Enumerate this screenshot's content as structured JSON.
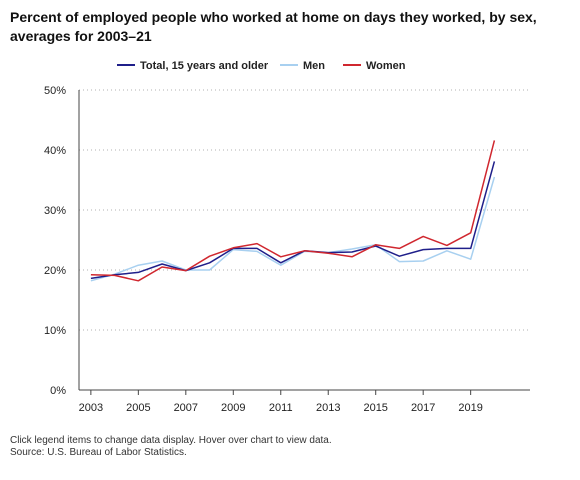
{
  "title": "Percent of employed people who worked at home on days they worked, by sex, averages for 2003–21",
  "footnote": {
    "line1": "Click legend items to change data display. Hover over chart to view data.",
    "line2": "Source: U.S. Bureau of Labor Statistics."
  },
  "colors": {
    "total": "#1f1f8a",
    "men": "#a8d0f0",
    "women": "#d0272f",
    "grid": "#b0b0b0",
    "axis": "#444444"
  },
  "chart_data": {
    "type": "line",
    "title": "Percent of employed people who worked at home on days they worked, by sex, averages for 2003–21",
    "xlabel": "",
    "ylabel": "",
    "x": [
      2003,
      2004,
      2005,
      2006,
      2007,
      2008,
      2009,
      2010,
      2011,
      2012,
      2013,
      2014,
      2015,
      2016,
      2017,
      2018,
      2019,
      2020
    ],
    "x_tick_labels": [
      "2003",
      "2005",
      "2007",
      "2009",
      "2011",
      "2013",
      "2015",
      "2017",
      "2019"
    ],
    "y_tick_labels": [
      "0%",
      "10%",
      "20%",
      "30%",
      "40%",
      "50%"
    ],
    "ylim": [
      0,
      50
    ],
    "xlim": [
      2002.5,
      2021.5
    ],
    "grid": "horizontal dotted",
    "legend_position": "top",
    "series": [
      {
        "name": "Total, 15 years and older",
        "color_key": "total",
        "values": [
          18.6,
          19.2,
          19.6,
          21.0,
          19.9,
          21.2,
          23.6,
          23.6,
          21.2,
          23.2,
          22.9,
          23.0,
          24.0,
          22.3,
          23.4,
          23.6,
          23.6,
          38.1
        ]
      },
      {
        "name": "Men",
        "color_key": "men",
        "values": [
          18.2,
          19.3,
          20.8,
          21.5,
          20.0,
          20.0,
          23.4,
          23.1,
          20.8,
          23.1,
          22.9,
          23.5,
          24.2,
          21.4,
          21.5,
          23.2,
          21.8,
          35.5
        ]
      },
      {
        "name": "Women",
        "color_key": "women",
        "values": [
          19.2,
          19.1,
          18.2,
          20.5,
          19.9,
          22.3,
          23.7,
          24.4,
          22.2,
          23.2,
          22.8,
          22.2,
          24.2,
          23.6,
          25.6,
          24.1,
          26.2,
          41.6
        ]
      }
    ]
  }
}
